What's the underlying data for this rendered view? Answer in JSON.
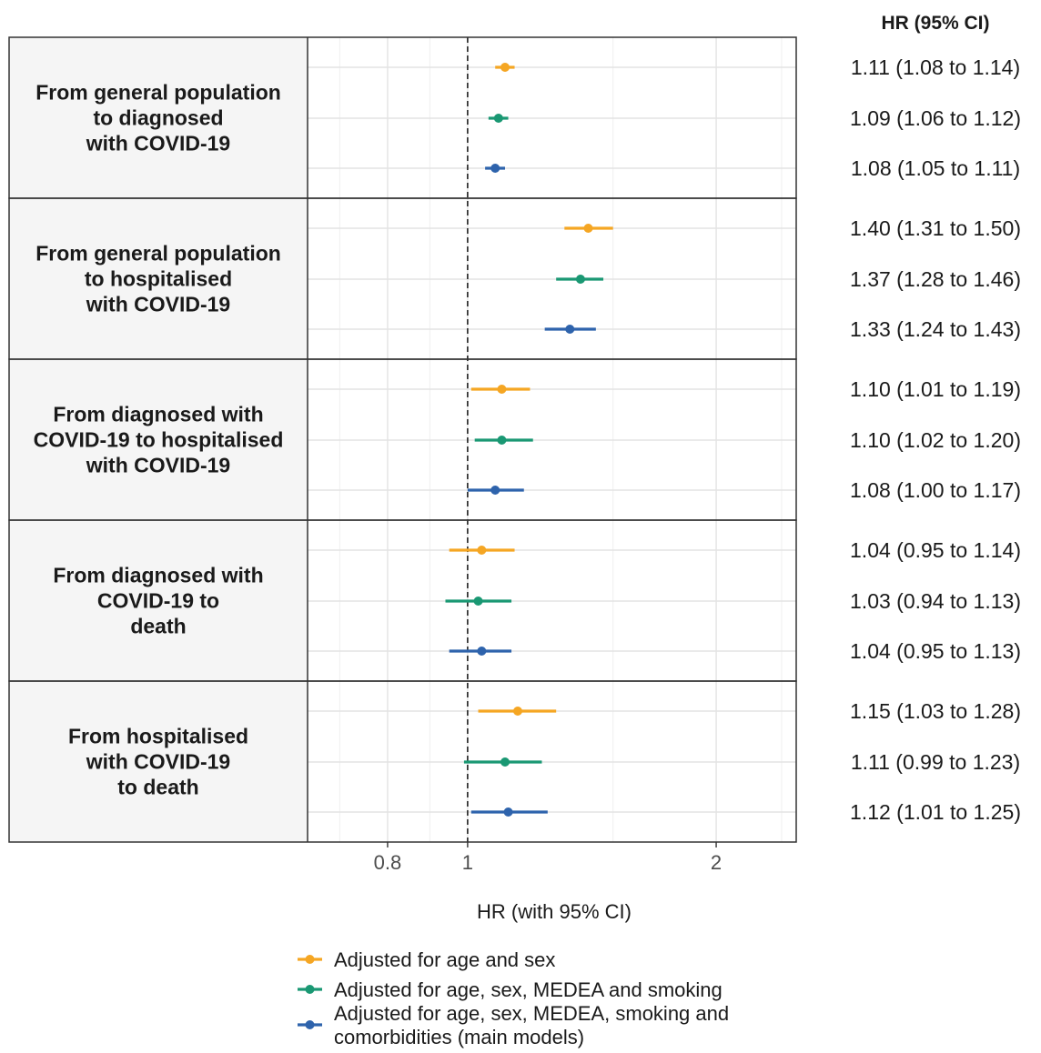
{
  "chart_data": {
    "type": "forest",
    "xlabel": "HR (with 95% CI)",
    "x_scale": "log",
    "xlim": [
      0.64,
      2.5
    ],
    "x_ticks": [
      {
        "value": 0.8,
        "label": "0.8"
      },
      {
        "value": 1,
        "label": "1"
      },
      {
        "value": 2,
        "label": "2"
      }
    ],
    "minor_gridlines": [
      0.7,
      0.9,
      1.5,
      2.4
    ],
    "reference_line": 1,
    "grid": true,
    "right_column_header": "HR (95% CI)",
    "series": [
      {
        "name": "Adjusted for age and sex",
        "color": "#F5A623"
      },
      {
        "name": "Adjusted for age, sex, MEDEA and smoking",
        "color": "#1A9873"
      },
      {
        "name": "Adjusted for age, sex, MEDEA, smoking and comorbidities (main models)",
        "color": "#2E63AC"
      }
    ],
    "legend_position": "bottom",
    "legend_lines": [
      [
        "Adjusted for age and sex"
      ],
      [
        "Adjusted for age, sex, MEDEA and smoking"
      ],
      [
        "Adjusted for age, sex, MEDEA, smoking and",
        "comorbidities (main models)"
      ]
    ],
    "panels": [
      {
        "label_lines": [
          "From general population",
          "to diagnosed",
          "with COVID-19"
        ],
        "rows": [
          {
            "series": 0,
            "hr": 1.11,
            "lo": 1.08,
            "hi": 1.14,
            "text": "1.11 (1.08 to 1.14)"
          },
          {
            "series": 1,
            "hr": 1.09,
            "lo": 1.06,
            "hi": 1.12,
            "text": "1.09 (1.06 to 1.12)"
          },
          {
            "series": 2,
            "hr": 1.08,
            "lo": 1.05,
            "hi": 1.11,
            "text": "1.08 (1.05 to 1.11)"
          }
        ]
      },
      {
        "label_lines": [
          "From general population",
          "to hospitalised",
          "with COVID-19"
        ],
        "rows": [
          {
            "series": 0,
            "hr": 1.4,
            "lo": 1.31,
            "hi": 1.5,
            "text": "1.40 (1.31 to 1.50)"
          },
          {
            "series": 1,
            "hr": 1.37,
            "lo": 1.28,
            "hi": 1.46,
            "text": "1.37 (1.28 to 1.46)"
          },
          {
            "series": 2,
            "hr": 1.33,
            "lo": 1.24,
            "hi": 1.43,
            "text": "1.33 (1.24 to 1.43)"
          }
        ]
      },
      {
        "label_lines": [
          "From diagnosed with",
          "COVID-19 to hospitalised",
          "with COVID-19"
        ],
        "rows": [
          {
            "series": 0,
            "hr": 1.1,
            "lo": 1.01,
            "hi": 1.19,
            "text": "1.10 (1.01 to 1.19)"
          },
          {
            "series": 1,
            "hr": 1.1,
            "lo": 1.02,
            "hi": 1.2,
            "text": "1.10 (1.02 to 1.20)"
          },
          {
            "series": 2,
            "hr": 1.08,
            "lo": 1.0,
            "hi": 1.17,
            "text": "1.08 (1.00 to 1.17)"
          }
        ]
      },
      {
        "label_lines": [
          "From diagnosed with",
          "COVID-19 to",
          "death"
        ],
        "rows": [
          {
            "series": 0,
            "hr": 1.04,
            "lo": 0.95,
            "hi": 1.14,
            "text": "1.04 (0.95 to 1.14)"
          },
          {
            "series": 1,
            "hr": 1.03,
            "lo": 0.94,
            "hi": 1.13,
            "text": "1.03 (0.94 to 1.13)"
          },
          {
            "series": 2,
            "hr": 1.04,
            "lo": 0.95,
            "hi": 1.13,
            "text": "1.04 (0.95 to 1.13)"
          }
        ]
      },
      {
        "label_lines": [
          "From hospitalised",
          "with COVID-19",
          "to death"
        ],
        "rows": [
          {
            "series": 0,
            "hr": 1.15,
            "lo": 1.03,
            "hi": 1.28,
            "text": "1.15 (1.03 to 1.28)"
          },
          {
            "series": 1,
            "hr": 1.11,
            "lo": 0.99,
            "hi": 1.23,
            "text": "1.11 (0.99 to 1.23)"
          },
          {
            "series": 2,
            "hr": 1.12,
            "lo": 1.01,
            "hi": 1.25,
            "text": "1.12 (1.01 to 1.25)"
          }
        ]
      }
    ]
  }
}
